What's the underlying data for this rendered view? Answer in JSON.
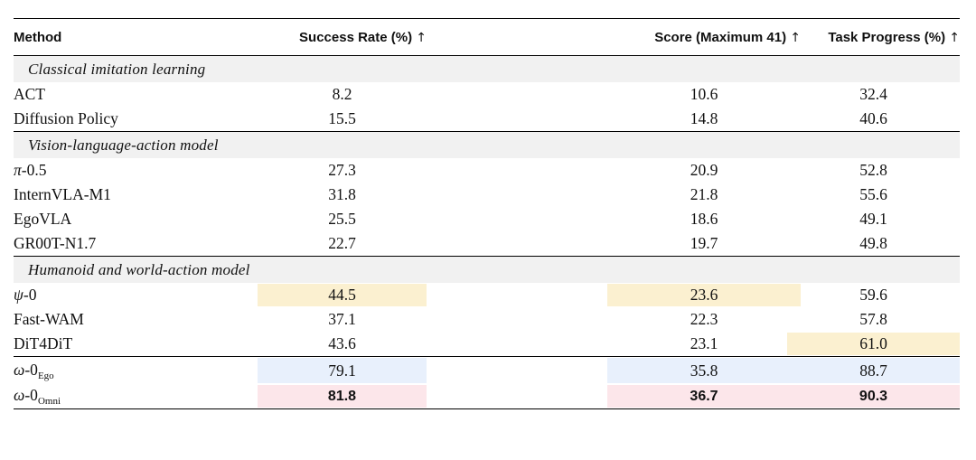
{
  "headers": {
    "method": "Method",
    "success": "Success Rate (%)",
    "score": "Score (Maximum 41)",
    "progress": "Task Progress (%)",
    "arrow": "↑"
  },
  "sections": [
    {
      "title": "Classical imitation learning",
      "rows": [
        {
          "method": "ACT",
          "success": "8.2",
          "score": "10.6",
          "progress": "32.4"
        },
        {
          "method": "Diffusion Policy",
          "success": "15.5",
          "score": "14.8",
          "progress": "40.6"
        }
      ]
    },
    {
      "title": "Vision-language-action model",
      "rows": [
        {
          "method_sym": "π",
          "method_rest": "-0.5",
          "success": "27.3",
          "score": "20.9",
          "progress": "52.8"
        },
        {
          "method": "InternVLA-M1",
          "success": "31.8",
          "score": "21.8",
          "progress": "55.6"
        },
        {
          "method": "EgoVLA",
          "success": "25.5",
          "score": "18.6",
          "progress": "49.1"
        },
        {
          "method": "GR00T-N1.7",
          "success": "22.7",
          "score": "19.7",
          "progress": "49.8"
        }
      ]
    },
    {
      "title": "Humanoid and world-action model",
      "rows": [
        {
          "method_sym": "ψ",
          "method_rest": "-0",
          "success": "44.5",
          "score": "23.6",
          "progress": "59.6"
        },
        {
          "method": "Fast-WAM",
          "success": "37.1",
          "score": "22.3",
          "progress": "57.8"
        },
        {
          "method": "DiT4DiT",
          "success": "43.6",
          "score": "23.1",
          "progress": "61.0"
        }
      ]
    }
  ],
  "ours": [
    {
      "method_sym": "ω",
      "method_rest": "-0",
      "method_sub": "Ego",
      "success": "79.1",
      "score": "35.8",
      "progress": "88.7"
    },
    {
      "method_sym": "ω",
      "method_rest": "-0",
      "method_sub": "Omni",
      "success": "81.8",
      "score": "36.7",
      "progress": "90.3"
    }
  ],
  "highlight_colors": {
    "second_best": "#fbf0d0",
    "ours": "#e8f0fc",
    "best": "#fce6ea"
  }
}
